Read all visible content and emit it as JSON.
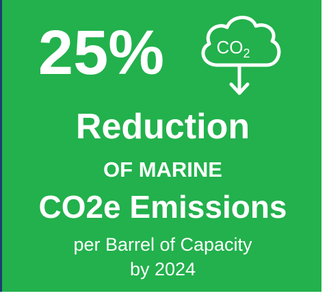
{
  "headline": "25%",
  "icon": {
    "label": "CO",
    "subscript": "2"
  },
  "lines": [
    "Reduction",
    "OF MARINE",
    "CO2e Emissions",
    "per Barrel of Capacity",
    "by 2024"
  ]
}
